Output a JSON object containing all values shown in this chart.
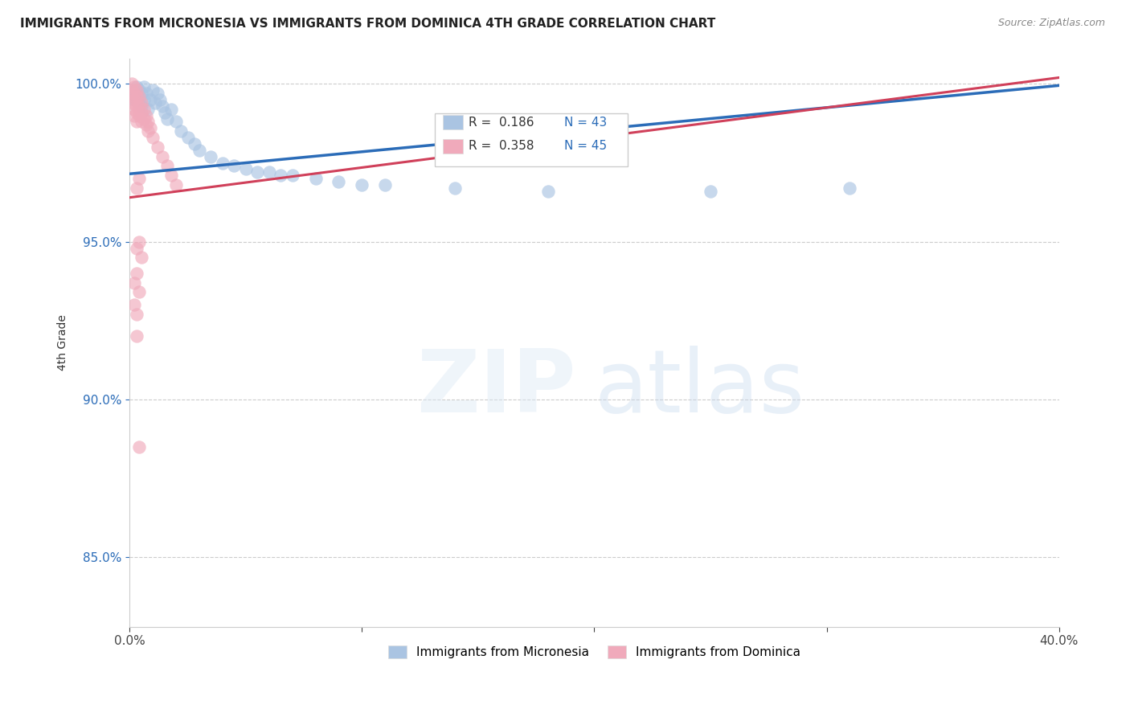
{
  "title": "IMMIGRANTS FROM MICRONESIA VS IMMIGRANTS FROM DOMINICA 4TH GRADE CORRELATION CHART",
  "source_text": "Source: ZipAtlas.com",
  "ylabel": "4th Grade",
  "xlim": [
    0.0,
    0.4
  ],
  "ylim": [
    0.828,
    1.008
  ],
  "xtick_positions": [
    0.0,
    0.1,
    0.2,
    0.3,
    0.4
  ],
  "xtick_labels": [
    "0.0%",
    "",
    "",
    "",
    "40.0%"
  ],
  "ytick_positions": [
    0.85,
    0.9,
    0.95,
    1.0
  ],
  "ytick_labels": [
    "85.0%",
    "90.0%",
    "95.0%",
    "100.0%"
  ],
  "legend_entries": [
    {
      "label_r": "R =  0.186",
      "label_n": "N = 43",
      "color": "#aac4e2"
    },
    {
      "label_r": "R =  0.358",
      "label_n": "N = 45",
      "color": "#f0aabb"
    }
  ],
  "bottom_legend": [
    {
      "label": "Immigrants from Micronesia",
      "color": "#aac4e2"
    },
    {
      "label": "Immigrants from Dominica",
      "color": "#f0aabb"
    }
  ],
  "micronesia_scatter": [
    [
      0.001,
      0.998
    ],
    [
      0.002,
      0.997
    ],
    [
      0.002,
      0.995
    ],
    [
      0.003,
      0.999
    ],
    [
      0.003,
      0.996
    ],
    [
      0.004,
      0.998
    ],
    [
      0.004,
      0.994
    ],
    [
      0.005,
      0.997
    ],
    [
      0.005,
      0.993
    ],
    [
      0.006,
      0.999
    ],
    [
      0.006,
      0.995
    ],
    [
      0.007,
      0.997
    ],
    [
      0.008,
      0.992
    ],
    [
      0.009,
      0.995
    ],
    [
      0.01,
      0.998
    ],
    [
      0.011,
      0.994
    ],
    [
      0.012,
      0.997
    ],
    [
      0.013,
      0.995
    ],
    [
      0.014,
      0.993
    ],
    [
      0.015,
      0.991
    ],
    [
      0.016,
      0.989
    ],
    [
      0.018,
      0.992
    ],
    [
      0.02,
      0.988
    ],
    [
      0.022,
      0.985
    ],
    [
      0.025,
      0.983
    ],
    [
      0.028,
      0.981
    ],
    [
      0.03,
      0.979
    ],
    [
      0.035,
      0.977
    ],
    [
      0.04,
      0.975
    ],
    [
      0.045,
      0.974
    ],
    [
      0.05,
      0.973
    ],
    [
      0.055,
      0.972
    ],
    [
      0.06,
      0.972
    ],
    [
      0.065,
      0.971
    ],
    [
      0.07,
      0.971
    ],
    [
      0.08,
      0.97
    ],
    [
      0.09,
      0.969
    ],
    [
      0.1,
      0.968
    ],
    [
      0.11,
      0.968
    ],
    [
      0.14,
      0.967
    ],
    [
      0.18,
      0.966
    ],
    [
      0.25,
      0.966
    ],
    [
      0.31,
      0.967
    ]
  ],
  "dominica_scatter": [
    [
      0.001,
      1.0
    ],
    [
      0.001,
      0.998
    ],
    [
      0.001,
      0.996
    ],
    [
      0.001,
      0.994
    ],
    [
      0.002,
      0.999
    ],
    [
      0.002,
      0.997
    ],
    [
      0.002,
      0.995
    ],
    [
      0.002,
      0.992
    ],
    [
      0.002,
      0.99
    ],
    [
      0.003,
      0.998
    ],
    [
      0.003,
      0.996
    ],
    [
      0.003,
      0.993
    ],
    [
      0.003,
      0.991
    ],
    [
      0.003,
      0.988
    ],
    [
      0.004,
      0.996
    ],
    [
      0.004,
      0.993
    ],
    [
      0.004,
      0.99
    ],
    [
      0.005,
      0.994
    ],
    [
      0.005,
      0.991
    ],
    [
      0.005,
      0.988
    ],
    [
      0.006,
      0.992
    ],
    [
      0.006,
      0.989
    ],
    [
      0.007,
      0.99
    ],
    [
      0.007,
      0.987
    ],
    [
      0.008,
      0.988
    ],
    [
      0.008,
      0.985
    ],
    [
      0.009,
      0.986
    ],
    [
      0.01,
      0.983
    ],
    [
      0.012,
      0.98
    ],
    [
      0.014,
      0.977
    ],
    [
      0.016,
      0.974
    ],
    [
      0.018,
      0.971
    ],
    [
      0.02,
      0.968
    ],
    [
      0.004,
      0.97
    ],
    [
      0.003,
      0.967
    ],
    [
      0.004,
      0.95
    ],
    [
      0.003,
      0.948
    ],
    [
      0.005,
      0.945
    ],
    [
      0.003,
      0.94
    ],
    [
      0.002,
      0.937
    ],
    [
      0.004,
      0.934
    ],
    [
      0.002,
      0.93
    ],
    [
      0.003,
      0.927
    ],
    [
      0.003,
      0.92
    ],
    [
      0.004,
      0.885
    ]
  ],
  "micronesia_trendline": {
    "x": [
      0.0,
      0.4
    ],
    "y": [
      0.9715,
      0.9995
    ]
  },
  "dominica_trendline": {
    "x": [
      0.0,
      0.4
    ],
    "y": [
      0.964,
      1.002
    ]
  },
  "trendline_color_blue": "#2b6cb8",
  "trendline_color_pink": "#d0405a",
  "dot_color_blue": "#aac4e2",
  "dot_color_pink": "#f0aabb",
  "dot_size": 140,
  "dot_alpha": 0.65,
  "grid_color": "#cccccc",
  "background_color": "#ffffff"
}
